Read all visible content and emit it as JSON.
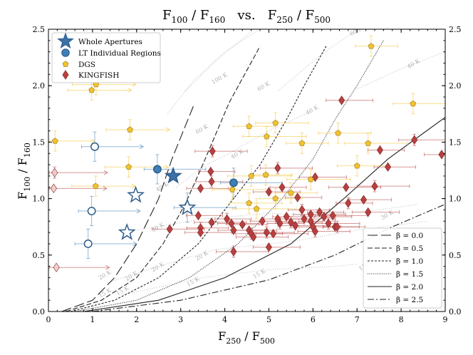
{
  "chart_data": {
    "type": "scatter",
    "title": {
      "main": "F",
      "s1": "100",
      "mid1": " / F",
      "s2": "160",
      "mid2": "   vs.   F",
      "s3": "250",
      "mid3": " / F",
      "s4": "500"
    },
    "xlabel": {
      "main": "F",
      "s1": "250",
      "mid": " / F",
      "s2": "500"
    },
    "ylabel": {
      "main": "F",
      "s1": "100",
      "mid": " / F",
      "s2": "160"
    },
    "xlim": [
      0,
      9
    ],
    "ylim": [
      0,
      2.5
    ],
    "xticks": [
      0,
      1,
      2,
      3,
      4,
      5,
      6,
      7,
      8,
      9
    ],
    "yticks": [
      0.0,
      0.5,
      1.0,
      1.5,
      2.0,
      2.5
    ],
    "grid": false,
    "colors": {
      "whole": "#3a72a8",
      "regions": "#3f7fb5",
      "dgs": "#f2c230",
      "kingfish": "#b8403f",
      "curve": "#222222",
      "temp": "#b0b0b0"
    },
    "legend_top": {
      "position": "top-left",
      "entries": [
        {
          "label": "Whole Apertures",
          "marker": "star"
        },
        {
          "label": "LT Individual Regions",
          "marker": "circle"
        },
        {
          "label": "DGS",
          "marker": "pentagon"
        },
        {
          "label": "KINGFISH",
          "marker": "diamond"
        }
      ]
    },
    "legend_beta": {
      "position": "bottom-right",
      "entries": [
        {
          "label": "β = 0.0",
          "dash": "14,5"
        },
        {
          "label": "β = 0.5",
          "dash": "7,3"
        },
        {
          "label": "β = 1.0",
          "dash": "3,2"
        },
        {
          "label": "β = 1.5",
          "dash": "1,1.6"
        },
        {
          "label": "β = 2.0",
          "dash": ""
        },
        {
          "label": "β = 2.5",
          "dash": "9,3,2,3"
        }
      ]
    },
    "beta_curves": [
      {
        "beta": 0.0,
        "dash": "14,5",
        "points": [
          [
            0.3,
            0
          ],
          [
            1.0,
            0.1
          ],
          [
            1.5,
            0.3
          ],
          [
            2.0,
            0.6
          ],
          [
            2.5,
            1.0
          ],
          [
            2.8,
            1.35
          ],
          [
            3.3,
            1.83
          ]
        ]
      },
      {
        "beta": 0.5,
        "dash": "7,3",
        "points": [
          [
            0.4,
            0
          ],
          [
            1.2,
            0.1
          ],
          [
            2.0,
            0.3
          ],
          [
            2.6,
            0.6
          ],
          [
            3.1,
            0.95
          ],
          [
            3.5,
            1.3
          ],
          [
            4.1,
            1.85
          ],
          [
            4.8,
            2.35
          ]
        ]
      },
      {
        "beta": 1.0,
        "dash": "3,2",
        "points": [
          [
            0.5,
            0
          ],
          [
            1.5,
            0.1
          ],
          [
            2.5,
            0.3
          ],
          [
            3.4,
            0.6
          ],
          [
            4.2,
            1.0
          ],
          [
            4.8,
            1.3
          ],
          [
            5.4,
            1.7
          ],
          [
            5.8,
            2.0
          ],
          [
            6.3,
            2.35
          ]
        ]
      },
      {
        "beta": 1.5,
        "dash": "1,1.6",
        "points": [
          [
            0.6,
            0
          ],
          [
            2.0,
            0.1
          ],
          [
            3.2,
            0.3
          ],
          [
            4.3,
            0.6
          ],
          [
            5.3,
            1.0
          ],
          [
            6.0,
            1.35
          ],
          [
            6.5,
            1.7
          ],
          [
            7.0,
            2.0
          ],
          [
            7.6,
            2.4
          ]
        ]
      },
      {
        "beta": 2.0,
        "dash": "",
        "points": [
          [
            0.8,
            0
          ],
          [
            2.5,
            0.1
          ],
          [
            4.0,
            0.3
          ],
          [
            5.5,
            0.6
          ],
          [
            6.7,
            1.0
          ],
          [
            7.7,
            1.35
          ],
          [
            8.4,
            1.55
          ],
          [
            9.0,
            1.72
          ]
        ]
      },
      {
        "beta": 2.5,
        "dash": "9,3,2,3",
        "points": [
          [
            1.0,
            0
          ],
          [
            3.0,
            0.1
          ],
          [
            5.0,
            0.28
          ],
          [
            6.5,
            0.5
          ],
          [
            7.8,
            0.75
          ],
          [
            9.0,
            0.95
          ]
        ]
      }
    ],
    "temp_lines": [
      {
        "label": "15 K",
        "label_at": [
          7.0,
          0.4
        ],
        "points": [
          [
            1.7,
            0.15
          ],
          [
            3.5,
            0.3
          ],
          [
            5.0,
            0.37
          ],
          [
            6.5,
            0.4
          ],
          [
            7.0,
            0.42
          ]
        ]
      },
      {
        "label": "20 K",
        "label_at": [
          3.5,
          0.5
        ],
        "points": [
          [
            1.3,
            0.25
          ],
          [
            2.5,
            0.4
          ],
          [
            3.8,
            0.55
          ],
          [
            5.5,
            0.62
          ],
          [
            7.0,
            0.72
          ],
          [
            8.6,
            0.8
          ]
        ]
      },
      {
        "label": "30 K",
        "label_at": [
          7.0,
          0.8
        ],
        "points": [
          [
            2.0,
            0.72
          ],
          [
            3.5,
            0.82
          ],
          [
            5.0,
            0.87
          ],
          [
            6.0,
            0.85
          ],
          [
            7.5,
            0.9
          ],
          [
            8.4,
            0.95
          ]
        ]
      },
      {
        "label": "40 K",
        "label_at": [
          4.1,
          1.4
        ],
        "points": [
          [
            2.9,
            1.1
          ],
          [
            3.5,
            1.28
          ],
          [
            4.1,
            1.4
          ],
          [
            5.0,
            1.6
          ],
          [
            6.0,
            1.78
          ]
        ]
      },
      {
        "label": "60 K",
        "label_at": [
          3.0,
          1.9
        ],
        "points": [
          [
            2.7,
            1.75
          ],
          [
            3.3,
            2.05
          ],
          [
            4.0,
            2.3
          ],
          [
            5.0,
            2.55
          ],
          [
            7.0,
            2.55
          ]
        ]
      },
      {
        "label": "100 K",
        "label_at": [
          3.4,
          2.05
        ],
        "points": [
          [
            3.1,
            1.95
          ],
          [
            3.8,
            2.22
          ],
          [
            4.6,
            2.48
          ]
        ]
      },
      {
        "label": "60 K",
        "label_at": [
          7.0,
          2.5
        ],
        "points": [
          [
            5.2,
            1.95
          ],
          [
            6.2,
            2.28
          ],
          [
            7.2,
            2.55
          ]
        ]
      },
      {
        "label": "40 K",
        "label_at": [
          8.3,
          2.2
        ],
        "points": [
          [
            7.0,
            1.97
          ],
          [
            8.0,
            2.15
          ],
          [
            9.0,
            2.3
          ]
        ]
      }
    ],
    "temp_labels": [
      {
        "text": "100 K",
        "x": 3.9,
        "y": 2.05
      },
      {
        "text": "60 K",
        "x": 7.0,
        "y": 2.47
      },
      {
        "text": "60 K",
        "x": 4.9,
        "y": 1.98
      },
      {
        "text": "60 K",
        "x": 3.5,
        "y": 1.6
      },
      {
        "text": "40 K",
        "x": 8.3,
        "y": 2.18
      },
      {
        "text": "40 K",
        "x": 6.0,
        "y": 1.77
      },
      {
        "text": "40 K",
        "x": 4.3,
        "y": 1.38
      },
      {
        "text": "40 K",
        "x": 2.6,
        "y": 1.09
      },
      {
        "text": "30 K",
        "x": 7.7,
        "y": 0.84
      },
      {
        "text": "30 K",
        "x": 2.5,
        "y": 0.73
      },
      {
        "text": "20 K",
        "x": 3.5,
        "y": 0.48
      },
      {
        "text": "20 K",
        "x": 2.5,
        "y": 0.38
      },
      {
        "text": "20 K",
        "x": 1.9,
        "y": 0.3
      },
      {
        "text": "20 K",
        "x": 1.3,
        "y": 0.31
      },
      {
        "text": "15 K",
        "x": 7.2,
        "y": 0.39
      },
      {
        "text": "15 K",
        "x": 4.8,
        "y": 0.32
      },
      {
        "text": "15 K",
        "x": 3.3,
        "y": 0.25
      },
      {
        "text": "15 K",
        "x": 1.7,
        "y": 0.17
      },
      {
        "text": "15 K",
        "x": 1.3,
        "y": 0.15
      }
    ],
    "whole_apertures": [
      {
        "x": 2.83,
        "y": 1.2,
        "filled": true
      },
      {
        "x": 1.98,
        "y": 1.03,
        "filled": false
      },
      {
        "x": 3.15,
        "y": 0.92,
        "filled": false
      },
      {
        "x": 1.78,
        "y": 0.7,
        "filled": false
      }
    ],
    "lt_regions": [
      {
        "x": 2.47,
        "y": 1.26,
        "filled": true
      },
      {
        "x": 4.2,
        "y": 1.14,
        "filled": true
      },
      {
        "x": 1.05,
        "y": 1.46,
        "filled": false
      },
      {
        "x": 0.98,
        "y": 0.89,
        "filled": false
      },
      {
        "x": 0.9,
        "y": 0.6,
        "filled": false
      },
      {
        "x": 3.15,
        "y": 0.92,
        "filled": false
      }
    ],
    "dgs": [
      {
        "x": 0.15,
        "y": 1.51
      },
      {
        "x": 0.98,
        "y": 1.96
      },
      {
        "x": 1.08,
        "y": 2.01
      },
      {
        "x": 1.85,
        "y": 1.61
      },
      {
        "x": 1.82,
        "y": 1.28
      },
      {
        "x": 1.07,
        "y": 1.11
      },
      {
        "x": 4.55,
        "y": 1.64
      },
      {
        "x": 5.15,
        "y": 1.67
      },
      {
        "x": 4.95,
        "y": 1.55
      },
      {
        "x": 5.75,
        "y": 1.49
      },
      {
        "x": 6.57,
        "y": 1.58
      },
      {
        "x": 7.25,
        "y": 1.49
      },
      {
        "x": 7.32,
        "y": 2.35
      },
      {
        "x": 8.27,
        "y": 1.84
      },
      {
        "x": 4.6,
        "y": 1.2
      },
      {
        "x": 4.93,
        "y": 1.21
      },
      {
        "x": 4.17,
        "y": 1.08
      },
      {
        "x": 5.95,
        "y": 1.17
      },
      {
        "x": 5.5,
        "y": 1.05
      },
      {
        "x": 4.55,
        "y": 0.96
      },
      {
        "x": 4.72,
        "y": 0.91
      },
      {
        "x": 5.15,
        "y": 1.0
      },
      {
        "x": 7.0,
        "y": 1.29
      }
    ],
    "kingfish": [
      {
        "x": 0.14,
        "y": 1.23
      },
      {
        "x": 0.12,
        "y": 1.09
      },
      {
        "x": 0.18,
        "y": 0.39
      },
      {
        "x": 3.72,
        "y": 1.42
      },
      {
        "x": 3.68,
        "y": 1.24
      },
      {
        "x": 3.45,
        "y": 1.09
      },
      {
        "x": 3.7,
        "y": 1.15
      },
      {
        "x": 2.75,
        "y": 0.73
      },
      {
        "x": 3.4,
        "y": 0.85
      },
      {
        "x": 3.45,
        "y": 0.74
      },
      {
        "x": 3.45,
        "y": 0.7
      },
      {
        "x": 3.7,
        "y": 0.79
      },
      {
        "x": 4.05,
        "y": 0.82
      },
      {
        "x": 4.15,
        "y": 0.78
      },
      {
        "x": 4.2,
        "y": 0.72
      },
      {
        "x": 4.2,
        "y": 0.53
      },
      {
        "x": 4.4,
        "y": 0.77
      },
      {
        "x": 4.55,
        "y": 0.72
      },
      {
        "x": 4.6,
        "y": 0.69
      },
      {
        "x": 4.65,
        "y": 0.66
      },
      {
        "x": 4.85,
        "y": 0.8
      },
      {
        "x": 4.95,
        "y": 0.7
      },
      {
        "x": 5.0,
        "y": 0.57
      },
      {
        "x": 5.1,
        "y": 0.69
      },
      {
        "x": 5.25,
        "y": 0.78
      },
      {
        "x": 5.2,
        "y": 0.82
      },
      {
        "x": 5.0,
        "y": 1.06
      },
      {
        "x": 5.2,
        "y": 1.27
      },
      {
        "x": 5.3,
        "y": 1.1
      },
      {
        "x": 5.4,
        "y": 0.84
      },
      {
        "x": 5.5,
        "y": 0.79
      },
      {
        "x": 5.6,
        "y": 0.76
      },
      {
        "x": 5.65,
        "y": 1.01
      },
      {
        "x": 5.75,
        "y": 0.9
      },
      {
        "x": 5.8,
        "y": 0.82
      },
      {
        "x": 5.95,
        "y": 0.86
      },
      {
        "x": 5.95,
        "y": 0.8
      },
      {
        "x": 6.0,
        "y": 0.75
      },
      {
        "x": 6.05,
        "y": 1.19
      },
      {
        "x": 6.05,
        "y": 0.71
      },
      {
        "x": 6.15,
        "y": 0.88
      },
      {
        "x": 6.25,
        "y": 0.84
      },
      {
        "x": 6.35,
        "y": 0.78
      },
      {
        "x": 6.45,
        "y": 0.85
      },
      {
        "x": 6.5,
        "y": 0.75
      },
      {
        "x": 6.55,
        "y": 0.75
      },
      {
        "x": 6.65,
        "y": 1.87
      },
      {
        "x": 6.75,
        "y": 1.1
      },
      {
        "x": 6.8,
        "y": 0.96
      },
      {
        "x": 7.15,
        "y": 0.99
      },
      {
        "x": 7.25,
        "y": 0.88
      },
      {
        "x": 7.4,
        "y": 1.11
      },
      {
        "x": 7.52,
        "y": 1.43
      },
      {
        "x": 7.7,
        "y": 1.28
      },
      {
        "x": 8.3,
        "y": 1.52
      },
      {
        "x": 8.92,
        "y": 1.39
      }
    ]
  }
}
